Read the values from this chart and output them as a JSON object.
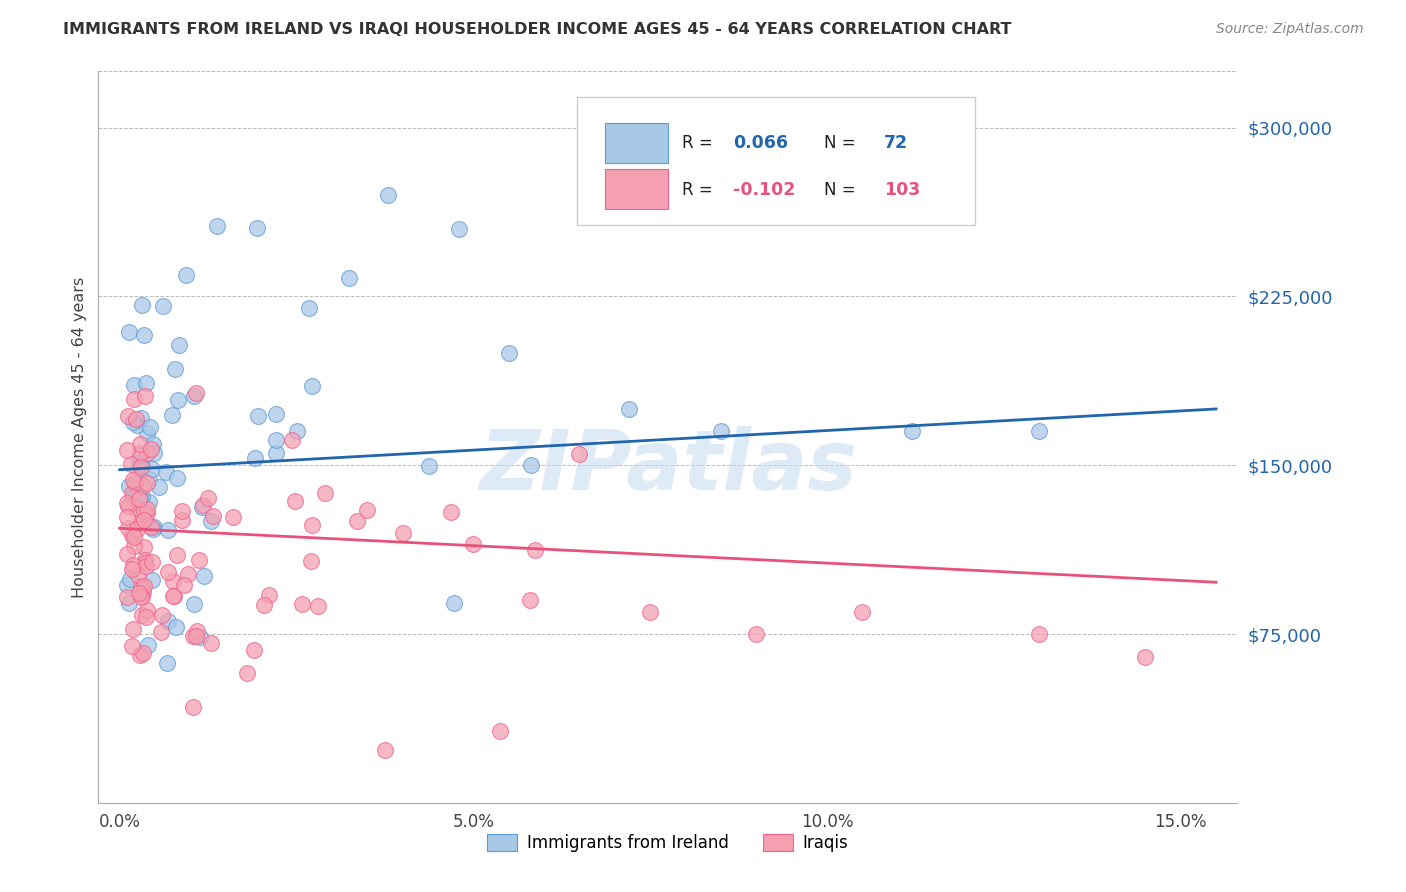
{
  "title": "IMMIGRANTS FROM IRELAND VS IRAQI HOUSEHOLDER INCOME AGES 45 - 64 YEARS CORRELATION CHART",
  "source": "Source: ZipAtlas.com",
  "ylabel": "Householder Income Ages 45 - 64 years",
  "yticks": [
    0,
    75000,
    150000,
    225000,
    300000
  ],
  "ytick_labels": [
    "",
    "$75,000",
    "$150,000",
    "$225,000",
    "$300,000"
  ],
  "xticks": [
    0.0,
    0.025,
    0.05,
    0.075,
    0.1,
    0.125,
    0.15
  ],
  "xtick_labels": [
    "0.0%",
    "",
    "5.0%",
    "",
    "10.0%",
    "",
    "15.0%"
  ],
  "ylim": [
    0,
    325000
  ],
  "xlim": [
    -0.003,
    0.158
  ],
  "ireland_color": "#a8c8e8",
  "iraqi_color": "#f4a0b0",
  "ireland_edge_color": "#5b9bd5",
  "iraqi_edge_color": "#f06090",
  "ireland_line_color": "#2166ac",
  "iraqi_line_color": "#e8527a",
  "ireland_R": 0.066,
  "ireland_N": 72,
  "iraqi_R": -0.102,
  "iraqi_N": 103,
  "watermark": "ZIPatlas",
  "watermark_color": "#c8dff0",
  "background_color": "#ffffff",
  "grid_color": "#bbbbbb",
  "ireland_line_x0": 0.0,
  "ireland_line_x1": 0.155,
  "ireland_line_y0": 148000,
  "ireland_line_y1": 175000,
  "iraqi_line_x0": 0.0,
  "iraqi_line_x1": 0.155,
  "iraqi_line_y0": 122000,
  "iraqi_line_y1": 98000,
  "legend_ireland_label": "R =  0.066   N =   72",
  "legend_iraqi_label": "R = -0.102   N = 103",
  "bottom_legend_ireland": "Immigrants from Ireland",
  "bottom_legend_iraqi": "Iraqis"
}
